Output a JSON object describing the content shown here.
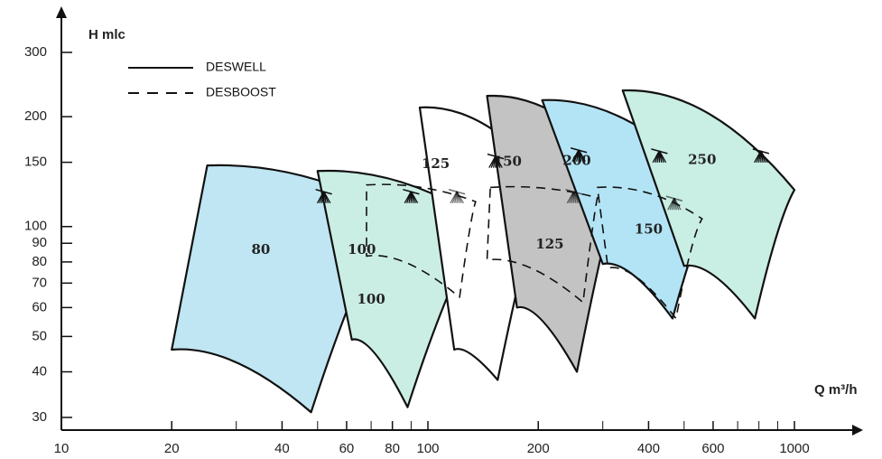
{
  "chart_data": {
    "type": "area",
    "title": "",
    "xlabel": "Q m³/h",
    "ylabel": "H mlc",
    "x_scale": "log",
    "y_scale": "log",
    "xlim": [
      10,
      1400
    ],
    "ylim": [
      28,
      380
    ],
    "x_ticks": [
      {
        "value": 10,
        "label": "10"
      },
      {
        "value": 20,
        "label": "20"
      },
      {
        "value": 40,
        "label": "40"
      },
      {
        "value": 60,
        "label": "60"
      },
      {
        "value": 80,
        "label": "80"
      },
      {
        "value": 100,
        "label": "100"
      },
      {
        "value": 200,
        "label": "200"
      },
      {
        "value": 400,
        "label": "400"
      },
      {
        "value": 600,
        "label": "600"
      },
      {
        "value": 1000,
        "label": "1000"
      }
    ],
    "x_minor_ticks": [
      30,
      50,
      70,
      90,
      300,
      500,
      700,
      800,
      900
    ],
    "y_ticks": [
      {
        "value": 30,
        "label": "30"
      },
      {
        "value": 40,
        "label": "40"
      },
      {
        "value": 50,
        "label": "50"
      },
      {
        "value": 60,
        "label": "60"
      },
      {
        "value": 70,
        "label": "70"
      },
      {
        "value": 80,
        "label": "80"
      },
      {
        "value": 90,
        "label": "90"
      },
      {
        "value": 100,
        "label": "100"
      },
      {
        "value": 150,
        "label": "150"
      },
      {
        "value": 200,
        "label": "200"
      },
      {
        "value": 300,
        "label": "300"
      }
    ],
    "legend": {
      "placement": "top-left",
      "entries": [
        {
          "label": "DESWELL",
          "style": "solid"
        },
        {
          "label": "DESBOOST",
          "style": "dashed"
        }
      ]
    },
    "series": [
      {
        "name": "DESWELL",
        "label": "80",
        "style": "solid",
        "fill": "#bfe6f2",
        "top_left": [
          25,
          147
        ],
        "top_right": [
          80,
          110
        ],
        "bottom_right": [
          48,
          31
        ],
        "bottom_left": [
          20,
          46
        ],
        "label_at": [
          35,
          86
        ]
      },
      {
        "name": "DESWELL",
        "label": "100",
        "style": "solid",
        "fill": "#cbeee4",
        "top_left": [
          50,
          142
        ],
        "top_right": [
          142,
          103
        ],
        "bottom_right": [
          88,
          32
        ],
        "bottom_left": [
          62,
          49
        ],
        "label_at": [
          66,
          86
        ]
      },
      {
        "name": "DESWELL",
        "label": "125",
        "style": "solid",
        "fill": "#ffffff",
        "top_left": [
          95,
          212
        ],
        "top_right": [
          210,
          135
        ],
        "bottom_right": [
          155,
          38
        ],
        "bottom_left": [
          118,
          46
        ],
        "label_at": [
          105,
          148
        ]
      },
      {
        "name": "DESWELL",
        "label": "150",
        "style": "solid",
        "fill": "#c3c3c3",
        "top_left": [
          145,
          228
        ],
        "top_right": [
          340,
          142
        ],
        "bottom_right": [
          255,
          40
        ],
        "bottom_left": [
          175,
          60
        ],
        "label_at": [
          165,
          150
        ]
      },
      {
        "name": "DESWELL",
        "label": "200",
        "style": "solid",
        "fill": "#b3e4f6",
        "top_left": [
          205,
          222
        ],
        "top_right": [
          620,
          122
        ],
        "bottom_right": [
          465,
          56
        ],
        "bottom_left": [
          300,
          79
        ],
        "label_at": [
          255,
          151
        ]
      },
      {
        "name": "DESWELL",
        "label": "250",
        "style": "solid",
        "fill": "#c9eee3",
        "top_left": [
          340,
          236
        ],
        "top_right": [
          1000,
          126
        ],
        "bottom_right": [
          780,
          56
        ],
        "bottom_left": [
          500,
          78
        ],
        "label_at": [
          560,
          152
        ]
      },
      {
        "name": "DESBOOST",
        "label": "100",
        "style": "dashed",
        "fill": "none",
        "top_left": [
          68,
          130
        ],
        "top_right": [
          135,
          117
        ],
        "bottom_right": [
          122,
          64
        ],
        "bottom_left": [
          68,
          83
        ],
        "label_at": [
          70,
          63
        ]
      },
      {
        "name": "DESBOOST",
        "label": "125",
        "style": "dashed",
        "fill": "none",
        "top_left": [
          148,
          128
        ],
        "top_right": [
          290,
          120
        ],
        "bottom_right": [
          265,
          62
        ],
        "bottom_left": [
          145,
          81
        ],
        "label_at": [
          215,
          89
        ]
      },
      {
        "name": "DESBOOST",
        "label": "150",
        "style": "dashed",
        "fill": "none",
        "top_left": [
          290,
          128
        ],
        "top_right": [
          560,
          105
        ],
        "bottom_right": [
          475,
          56
        ],
        "bottom_left": [
          310,
          77
        ],
        "label_at": [
          400,
          98
        ]
      }
    ],
    "markers": [
      {
        "at": [
          52,
          120
        ],
        "style": "solid"
      },
      {
        "at": [
          90,
          120
        ],
        "style": "solid"
      },
      {
        "at": [
          153,
          150
        ],
        "style": "solid"
      },
      {
        "at": [
          258,
          156
        ],
        "style": "solid"
      },
      {
        "at": [
          428,
          155
        ],
        "style": "solid"
      },
      {
        "at": [
          810,
          155
        ],
        "style": "solid"
      },
      {
        "at": [
          120,
          120
        ],
        "style": "dashed"
      },
      {
        "at": [
          250,
          120
        ],
        "style": "dashed"
      },
      {
        "at": [
          470,
          115
        ],
        "style": "dashed"
      }
    ]
  }
}
